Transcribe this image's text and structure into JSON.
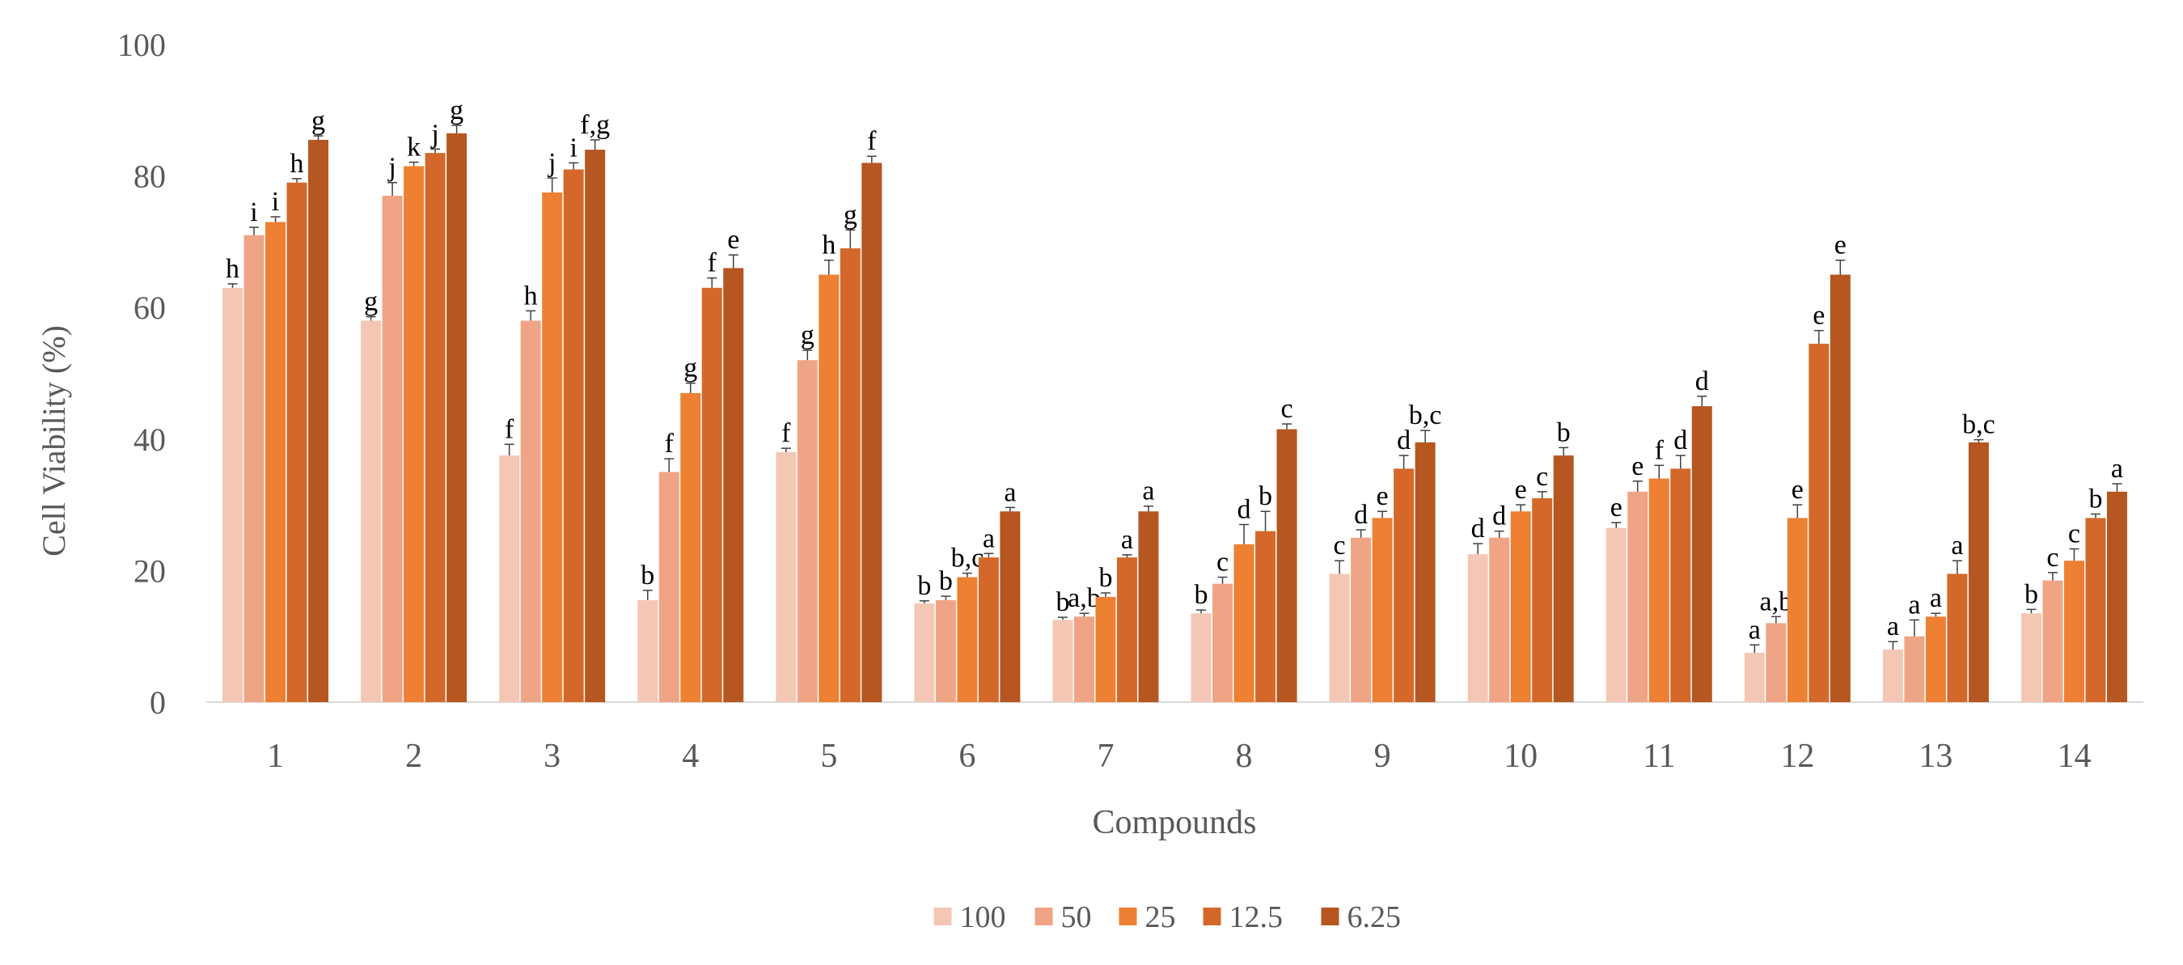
{
  "chart_data": {
    "type": "bar",
    "xlabel": "Compounds",
    "ylabel": "Cell Viability (%)",
    "ylim": [
      0,
      100
    ],
    "yticks": [
      0,
      20,
      40,
      60,
      80,
      100
    ],
    "grid": false,
    "legend_position": "bottom",
    "categories": [
      "1",
      "2",
      "3",
      "4",
      "5",
      "6",
      "7",
      "8",
      "9",
      "10",
      "11",
      "12",
      "13",
      "14"
    ],
    "series": [
      {
        "name": "100",
        "color": "#f4c7b5",
        "values": [
          63,
          58,
          37.5,
          15.5,
          38,
          15,
          12.5,
          13.5,
          19.5,
          22.5,
          26.5,
          7.5,
          8,
          13.5
        ],
        "errors": [
          0.6,
          0.6,
          1.7,
          1.5,
          0.6,
          0.4,
          0.4,
          0.5,
          2.0,
          1.6,
          0.8,
          1.2,
          1.2,
          0.6
        ],
        "labels": [
          "h",
          "g",
          "f",
          "b",
          "f",
          "b",
          "b",
          "b",
          "c",
          "d",
          "e",
          "a",
          "a",
          "b"
        ]
      },
      {
        "name": "50",
        "color": "#f0a486",
        "values": [
          71,
          77,
          58,
          35,
          52,
          15.5,
          13,
          18,
          25,
          25,
          32,
          12,
          10,
          18.5
        ],
        "errors": [
          1.2,
          2.0,
          1.5,
          2.0,
          1.5,
          0.6,
          0.5,
          1.0,
          1.2,
          1.0,
          1.6,
          1.0,
          2.5,
          1.2
        ],
        "labels": [
          "i",
          "j",
          "h",
          "f",
          "g",
          "b",
          "a,b",
          "c",
          "d",
          "d",
          "e",
          "a,b",
          "a",
          "c"
        ]
      },
      {
        "name": "25",
        "color": "#ed8032",
        "values": [
          73,
          81.5,
          77.5,
          47,
          65,
          19,
          16,
          24,
          28,
          29,
          34,
          28,
          13,
          21.5
        ],
        "errors": [
          0.8,
          0.6,
          2.2,
          1.5,
          2.2,
          0.6,
          0.6,
          3.0,
          1.0,
          1.0,
          2.0,
          2.0,
          0.5,
          1.8
        ],
        "labels": [
          "i",
          "k",
          "j",
          "g",
          "h",
          "b,c",
          "b",
          "d",
          "e",
          "e",
          "f",
          "e",
          "a",
          "c"
        ]
      },
      {
        "name": "12.5",
        "color": "#d4682a",
        "values": [
          79,
          83.5,
          81,
          63,
          69,
          22,
          22,
          26,
          35.5,
          31,
          35.5,
          54.5,
          19.5,
          28
        ],
        "errors": [
          0.6,
          0.6,
          1.0,
          1.5,
          2.8,
          0.6,
          0.4,
          3.0,
          2.0,
          1.0,
          2.0,
          2.0,
          2.0,
          0.6
        ],
        "labels": [
          "h",
          "j",
          "i",
          "f",
          "g",
          "a",
          "a",
          "b",
          "d",
          "c",
          "d",
          "e",
          "a",
          "b"
        ]
      },
      {
        "name": "6.25",
        "color": "#b65620",
        "values": [
          85.5,
          86.5,
          84,
          66,
          82,
          29,
          29,
          41.5,
          39.5,
          37.5,
          45,
          65,
          39.5,
          32
        ],
        "errors": [
          0.6,
          1.2,
          1.5,
          2.0,
          1.0,
          0.6,
          0.8,
          0.8,
          1.8,
          1.2,
          1.5,
          2.2,
          0.4,
          1.2
        ],
        "labels": [
          "g",
          "g",
          "f,g",
          "e",
          "f",
          "a",
          "a",
          "c",
          "b,c",
          "b",
          "d",
          "e",
          "b,c",
          "a"
        ]
      }
    ]
  }
}
